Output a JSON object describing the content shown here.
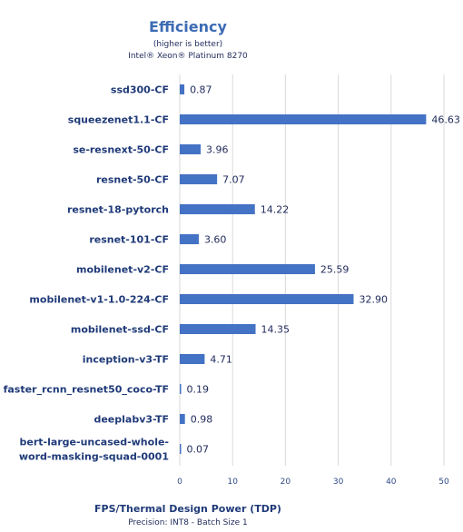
{
  "chart_data": {
    "type": "bar",
    "orientation": "horizontal",
    "title": "Efficiency",
    "subtitle_lines": [
      "(higher is better)",
      "Intel® Xeon® Platinum 8270"
    ],
    "categories": [
      "ssd300-CF",
      "squeezenet1.1-CF",
      "se-resnext-50-CF",
      "resnet-50-CF",
      "resnet-18-pytorch",
      "resnet-101-CF",
      "mobilenet-v2-CF",
      "mobilenet-v1-1.0-224-CF",
      "mobilenet-ssd-CF",
      "inception-v3-TF",
      "faster_rcnn_resnet50_coco-TF",
      "deeplabv3-TF",
      [
        "bert-large-uncased-whole-",
        "word-masking-squad-0001"
      ]
    ],
    "values": [
      0.87,
      46.63,
      3.96,
      7.07,
      14.22,
      3.6,
      25.59,
      32.9,
      14.35,
      4.71,
      0.19,
      0.98,
      0.07
    ],
    "value_labels": [
      "0.87",
      "46.63",
      "3.96",
      "7.07",
      "14.22",
      "3.60",
      "25.59",
      "32.90",
      "14.35",
      "4.71",
      "0.19",
      "0.98",
      "0.07"
    ],
    "xlim": [
      0,
      50
    ],
    "xticks": [
      0,
      10,
      20,
      30,
      40,
      50
    ],
    "xlabel": "FPS/Thermal Design Power (TDP)",
    "xlabel_sub": "Precision: INT8 - Batch Size 1",
    "grid": true,
    "bar_color": "#4472c4"
  }
}
